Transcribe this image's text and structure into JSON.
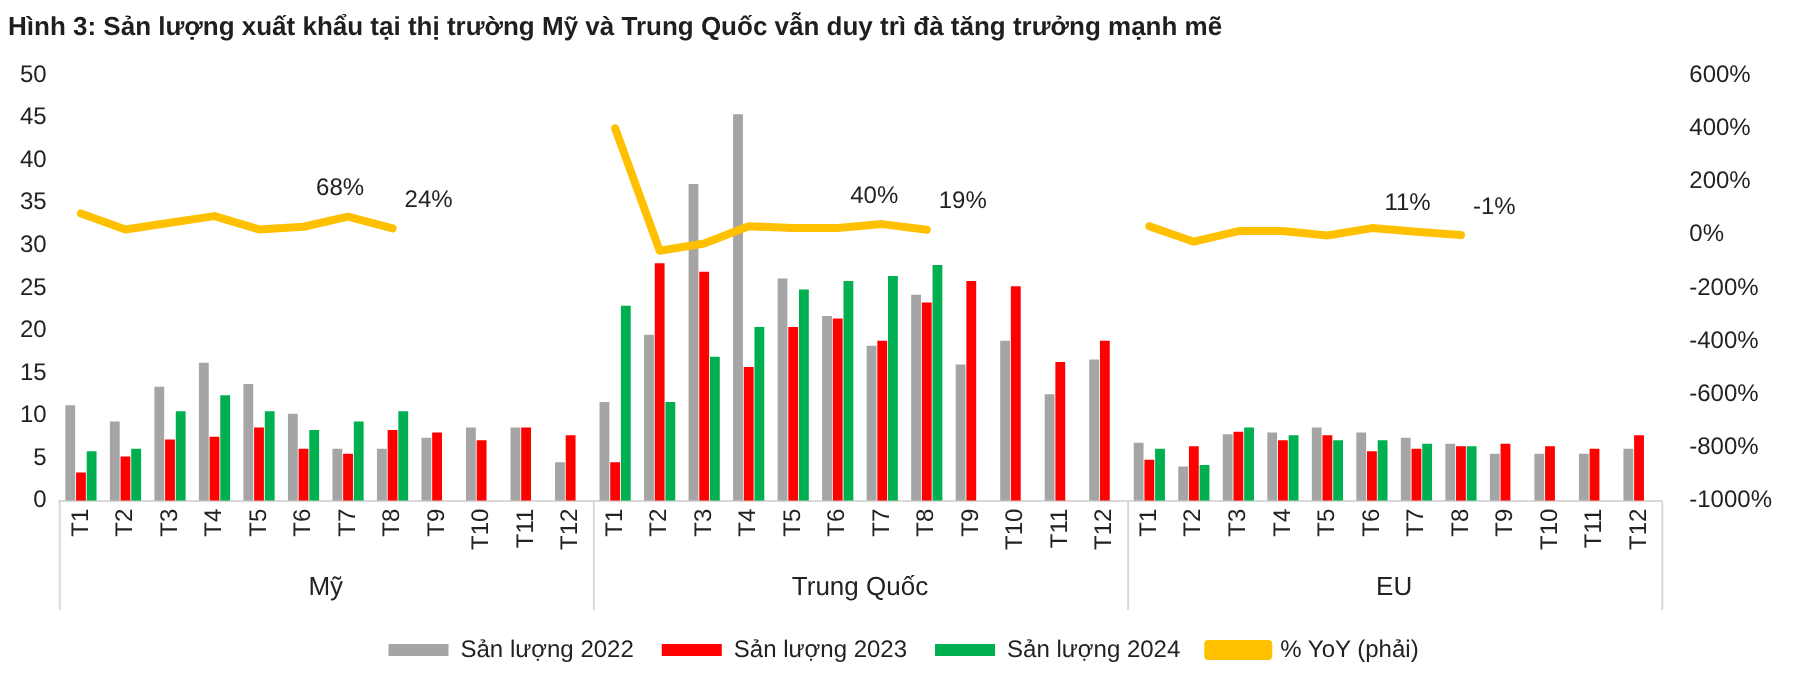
{
  "chart_data": {
    "type": "bar",
    "title": "Hình 3: Sản lượng xuất khẩu tại thị trường Mỹ và Trung Quốc vẫn duy trì đà tăng trưởng mạnh mẽ",
    "categories": [
      "T1",
      "T2",
      "T3",
      "T4",
      "T5",
      "T6",
      "T7",
      "T8",
      "T9",
      "T10",
      "T11",
      "T12",
      "T1",
      "T2",
      "T3",
      "T4",
      "T5",
      "T6",
      "T7",
      "T8",
      "T9",
      "T10",
      "T11",
      "T12",
      "T1",
      "T2",
      "T3",
      "T4",
      "T5",
      "T6",
      "T7",
      "T8",
      "T9",
      "T10",
      "T11",
      "T12"
    ],
    "annotations": [
      "Mỹ",
      "Trung Quốc",
      "EU"
    ],
    "series": [
      {
        "name": "Sản lượng 2022",
        "color": "#a5a5a5",
        "values": [
          11.2,
          9.3,
          13.4,
          16.2,
          13.7,
          10.2,
          6.1,
          6.1,
          7.4,
          8.6,
          8.6,
          4.5,
          11.6,
          19.5,
          37.2,
          45.4,
          26.1,
          21.7,
          18.2,
          24.2,
          16.0,
          18.8,
          12.5,
          16.6,
          6.8,
          4.0,
          7.8,
          8.0,
          8.6,
          8.0,
          7.4,
          6.7,
          5.5,
          5.5,
          5.5,
          6.1
        ]
      },
      {
        "name": "Sản lượng 2023",
        "color": "#ff0000",
        "values": [
          3.3,
          5.2,
          7.2,
          7.5,
          8.6,
          6.1,
          5.5,
          8.3,
          8.0,
          7.1,
          8.6,
          7.7,
          4.5,
          27.9,
          26.9,
          15.7,
          20.4,
          21.4,
          18.8,
          23.3,
          25.8,
          25.2,
          16.3,
          18.8,
          4.8,
          6.4,
          8.1,
          7.1,
          7.7,
          5.8,
          6.1,
          6.4,
          6.7,
          6.4,
          6.1,
          7.7
        ]
      },
      {
        "name": "Sản lượng 2024",
        "color": "#00b050",
        "values": [
          5.8,
          6.1,
          10.5,
          12.4,
          10.5,
          8.3,
          9.3,
          10.5,
          null,
          null,
          null,
          null,
          22.9,
          11.6,
          16.9,
          20.4,
          24.8,
          25.8,
          26.4,
          27.7,
          null,
          null,
          null,
          null,
          6.1,
          4.2,
          8.6,
          7.7,
          7.1,
          7.1,
          6.7,
          6.4,
          null,
          null,
          null,
          null
        ]
      },
      {
        "name": "% YoY (phải)",
        "type": "line",
        "axis": "y2",
        "color": "#ffc000",
        "values": [
          80,
          20,
          45,
          70,
          20,
          30,
          68,
          24,
          null,
          null,
          null,
          null,
          400,
          -60,
          -33,
          32,
          25,
          25,
          40,
          19,
          null,
          null,
          null,
          null,
          32,
          -26,
          14,
          14,
          -3,
          25,
          11,
          -1,
          null,
          null,
          null,
          null
        ],
        "value_labels": [
          null,
          null,
          null,
          null,
          null,
          null,
          "68%",
          "24%",
          null,
          null,
          null,
          null,
          null,
          null,
          null,
          null,
          null,
          null,
          "40%",
          "19%",
          null,
          null,
          null,
          null,
          null,
          null,
          null,
          null,
          null,
          null,
          "11%",
          "-1%",
          null,
          null,
          null,
          null
        ]
      }
    ],
    "ylim": [
      0,
      50
    ],
    "yticks": [
      0,
      5,
      10,
      15,
      20,
      25,
      30,
      35,
      40,
      45,
      50
    ],
    "y2lim": [
      -1000,
      600
    ],
    "y2ticks": [
      {
        "value": -1000,
        "label": "-1000%"
      },
      {
        "value": -800,
        "label": "-800%"
      },
      {
        "value": -600,
        "label": "-600%"
      },
      {
        "value": -400,
        "label": "-400%"
      },
      {
        "value": -200,
        "label": "-200%"
      },
      {
        "value": 0,
        "label": "0%"
      },
      {
        "value": 200,
        "label": "200%"
      },
      {
        "value": 400,
        "label": "400%"
      },
      {
        "value": 600,
        "label": "600%"
      }
    ],
    "grid": false,
    "legend": "bottom"
  }
}
